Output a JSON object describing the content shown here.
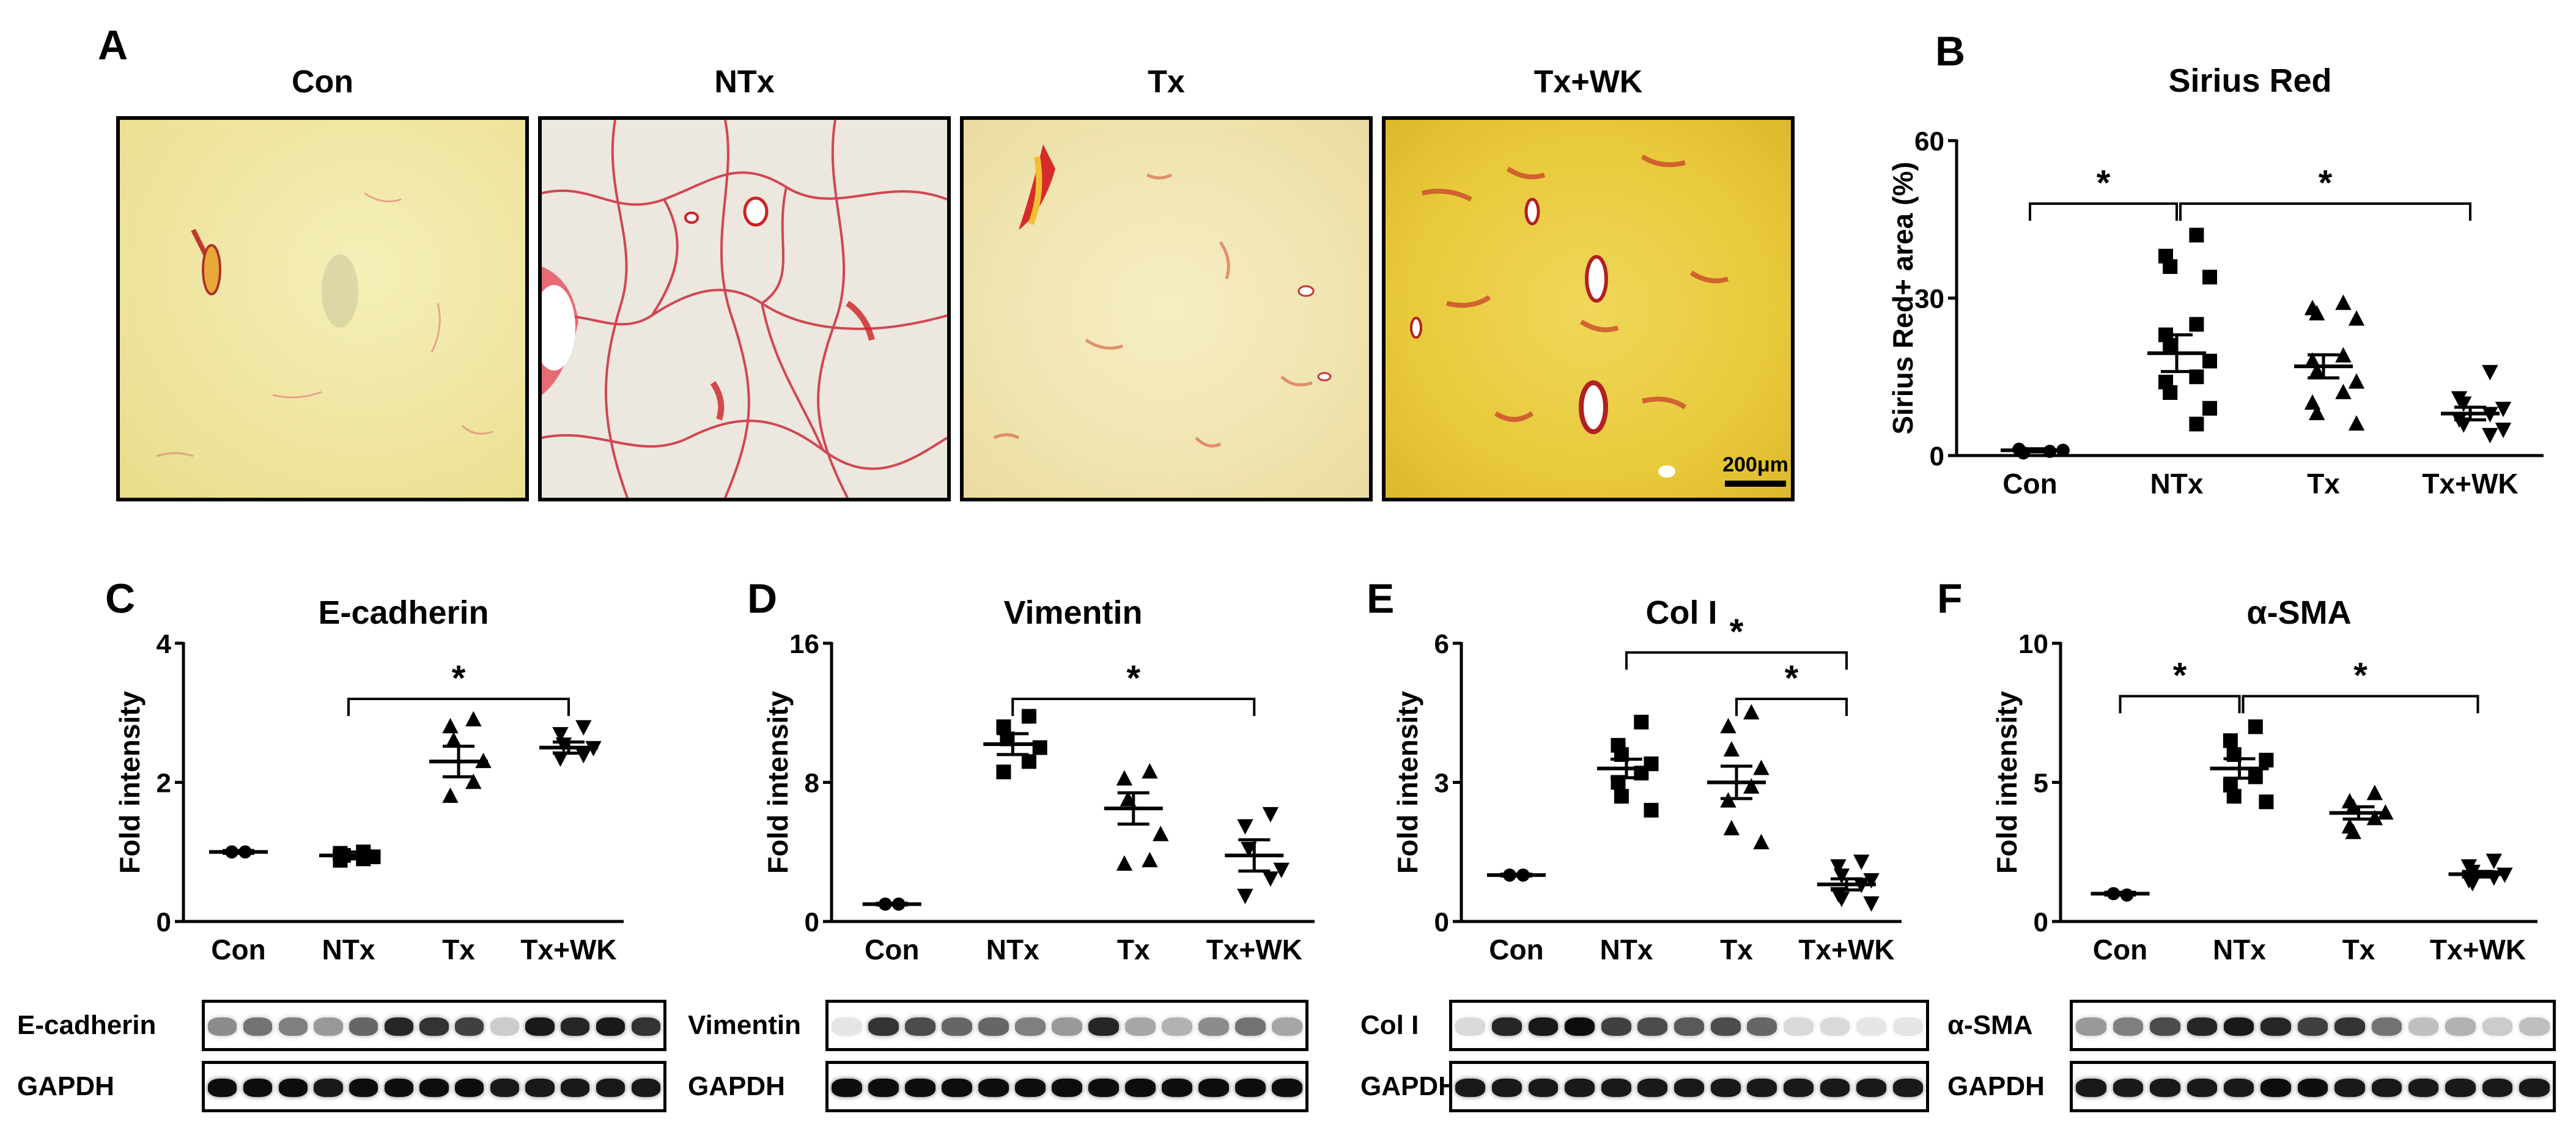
{
  "panel_A": {
    "label": "A",
    "groups": [
      "Con",
      "NTx",
      "Tx",
      "Tx+WK"
    ],
    "scale_bar": "200μm",
    "images": [
      "liver-section-con",
      "liver-section-ntx",
      "liver-section-tx",
      "liver-section-txwk"
    ]
  },
  "colors": {
    "axis": "#000000",
    "background": "#ffffff"
  },
  "chart_data": [
    {
      "id": "B",
      "panel_label": "B",
      "type": "scatter",
      "title": "Sirius Red",
      "ylabel": "Sirius Red+ area (%)",
      "xlabel": "",
      "categories": [
        "Con",
        "NTx",
        "Tx",
        "Tx+WK"
      ],
      "ylim": [
        0,
        60
      ],
      "yticks": [
        0,
        30,
        60
      ],
      "markers": [
        "circle",
        "square",
        "triangle-up",
        "triangle-down"
      ],
      "means": [
        1,
        19.5,
        17,
        8
      ],
      "sems": [
        0.3,
        3.5,
        2.2,
        1.2
      ],
      "points": [
        [
          0.8,
          1.2,
          0.5,
          1.0
        ],
        [
          42,
          38,
          36,
          34,
          25,
          23,
          21,
          18,
          15,
          14,
          12,
          9,
          6
        ],
        [
          29,
          28,
          27,
          26,
          19,
          18,
          16,
          14,
          12,
          10,
          8,
          6
        ],
        [
          16,
          11,
          10,
          9,
          8,
          7,
          6,
          5,
          4
        ]
      ],
      "brackets": [
        {
          "from": 0,
          "to": 1,
          "label": "*",
          "y": 48
        },
        {
          "from": 1,
          "to": 3,
          "label": "*",
          "y": 48
        }
      ]
    },
    {
      "id": "C",
      "panel_label": "C",
      "type": "scatter",
      "title": "E-cadherin",
      "ylabel": "Fold intensity",
      "xlabel": "",
      "categories": [
        "Con",
        "NTx",
        "Tx",
        "Tx+WK"
      ],
      "ylim": [
        0,
        4
      ],
      "yticks": [
        0,
        2,
        4
      ],
      "markers": [
        "circle",
        "square",
        "triangle-up",
        "triangle-down"
      ],
      "means": [
        1.0,
        0.95,
        2.3,
        2.5
      ],
      "sems": [
        0.02,
        0.05,
        0.22,
        0.08
      ],
      "points": [
        [
          1.0,
          1.0
        ],
        [
          1.0,
          0.98,
          0.95,
          0.93,
          0.9,
          0.88
        ],
        [
          2.9,
          2.8,
          2.6,
          2.3,
          2.0,
          1.8
        ],
        [
          2.8,
          2.7,
          2.55,
          2.5,
          2.4,
          2.35
        ]
      ],
      "brackets": [
        {
          "from": 1,
          "to": 3,
          "label": "*",
          "y": 3.2
        }
      ]
    },
    {
      "id": "D",
      "panel_label": "D",
      "type": "scatter",
      "title": "Vimentin",
      "ylabel": "Fold intensity",
      "xlabel": "",
      "categories": [
        "Con",
        "NTx",
        "Tx",
        "Tx+WK"
      ],
      "ylim": [
        0,
        16
      ],
      "yticks": [
        0,
        8,
        16
      ],
      "markers": [
        "circle",
        "square",
        "triangle-up",
        "triangle-down"
      ],
      "means": [
        1.0,
        10.2,
        6.5,
        3.8
      ],
      "sems": [
        0.05,
        0.6,
        0.9,
        0.9
      ],
      "points": [
        [
          1.0,
          1.0
        ],
        [
          11.8,
          11.2,
          10.5,
          10.0,
          9.2,
          8.6
        ],
        [
          8.6,
          8.2,
          7.0,
          5.0,
          3.5,
          3.3
        ],
        [
          6.2,
          5.5,
          4.2,
          3.0,
          2.5,
          1.5
        ]
      ],
      "brackets": [
        {
          "from": 1,
          "to": 3,
          "label": "*",
          "y": 12.8
        }
      ]
    },
    {
      "id": "E",
      "panel_label": "E",
      "type": "scatter",
      "title": "Col I",
      "ylabel": "Fold intensity",
      "xlabel": "",
      "categories": [
        "Con",
        "NTx",
        "Tx",
        "Tx+WK"
      ],
      "ylim": [
        0,
        6
      ],
      "yticks": [
        0,
        3,
        6
      ],
      "markers": [
        "circle",
        "square",
        "triangle-up",
        "triangle-down"
      ],
      "means": [
        1.0,
        3.3,
        3.0,
        0.8
      ],
      "sems": [
        0.02,
        0.2,
        0.35,
        0.12
      ],
      "points": [
        [
          1.0,
          1.0
        ],
        [
          4.3,
          3.8,
          3.6,
          3.4,
          3.2,
          3.0,
          2.7,
          2.4
        ],
        [
          4.5,
          4.2,
          3.7,
          3.3,
          2.9,
          2.6,
          2.0,
          1.7
        ],
        [
          1.3,
          1.2,
          1.0,
          0.9,
          0.8,
          0.6,
          0.5,
          0.4
        ]
      ],
      "brackets": [
        {
          "from": 1,
          "to": 3,
          "label": "*",
          "y": 5.8
        },
        {
          "from": 2,
          "to": 3,
          "label": "*",
          "y": 4.8
        }
      ]
    },
    {
      "id": "F",
      "panel_label": "F",
      "type": "scatter",
      "title": "α-SMA",
      "ylabel": "Fold intensity",
      "xlabel": "",
      "categories": [
        "Con",
        "NTx",
        "Tx",
        "Tx+WK"
      ],
      "ylim": [
        0,
        10
      ],
      "yticks": [
        0,
        5,
        10
      ],
      "markers": [
        "circle",
        "square",
        "triangle-up",
        "triangle-down"
      ],
      "means": [
        1.0,
        5.5,
        3.9,
        1.7
      ],
      "sems": [
        0.05,
        0.35,
        0.22,
        0.1
      ],
      "points": [
        [
          1.0,
          0.95
        ],
        [
          7.0,
          6.5,
          6.0,
          5.8,
          5.2,
          4.9,
          4.5,
          4.3
        ],
        [
          4.6,
          4.3,
          4.1,
          3.9,
          3.7,
          3.4,
          3.2
        ],
        [
          2.2,
          2.0,
          1.8,
          1.7,
          1.6,
          1.5,
          1.4
        ]
      ],
      "brackets": [
        {
          "from": 0,
          "to": 1,
          "label": "*",
          "y": 8.1
        },
        {
          "from": 1,
          "to": 3,
          "label": "*",
          "y": 8.1
        }
      ]
    }
  ],
  "blots": [
    {
      "panel": "C",
      "rows": [
        {
          "label": "E-cadherin",
          "intensities": [
            0.45,
            0.55,
            0.5,
            0.4,
            0.6,
            0.85,
            0.8,
            0.75,
            0.2,
            0.9,
            0.85,
            0.9,
            0.8
          ]
        },
        {
          "label": "GAPDH",
          "intensities": [
            0.95,
            0.95,
            0.95,
            0.9,
            0.95,
            0.95,
            0.95,
            0.95,
            0.9,
            0.9,
            0.9,
            0.9,
            0.9
          ]
        }
      ]
    },
    {
      "panel": "D",
      "rows": [
        {
          "label": "Vimentin",
          "intensities": [
            0.1,
            0.8,
            0.7,
            0.6,
            0.6,
            0.5,
            0.4,
            0.85,
            0.35,
            0.3,
            0.45,
            0.55,
            0.35
          ]
        },
        {
          "label": "GAPDH",
          "intensities": [
            0.95,
            0.95,
            0.95,
            0.95,
            0.95,
            0.95,
            0.95,
            0.95,
            0.95,
            0.95,
            0.95,
            0.95,
            0.95
          ]
        }
      ]
    },
    {
      "panel": "E",
      "rows": [
        {
          "label": "Col I",
          "intensities": [
            0.15,
            0.85,
            0.9,
            0.95,
            0.75,
            0.7,
            0.65,
            0.7,
            0.6,
            0.15,
            0.15,
            0.1,
            0.1
          ]
        },
        {
          "label": "GAPDH",
          "intensities": [
            0.9,
            0.9,
            0.9,
            0.9,
            0.9,
            0.9,
            0.9,
            0.9,
            0.9,
            0.9,
            0.9,
            0.9,
            0.9
          ]
        }
      ]
    },
    {
      "panel": "F",
      "rows": [
        {
          "label": "α-SMA",
          "intensities": [
            0.4,
            0.5,
            0.7,
            0.85,
            0.9,
            0.85,
            0.75,
            0.8,
            0.55,
            0.25,
            0.3,
            0.2,
            0.25
          ]
        },
        {
          "label": "GAPDH",
          "intensities": [
            0.9,
            0.9,
            0.9,
            0.9,
            0.9,
            0.95,
            0.95,
            0.9,
            0.9,
            0.9,
            0.9,
            0.9,
            0.9
          ]
        }
      ]
    }
  ]
}
